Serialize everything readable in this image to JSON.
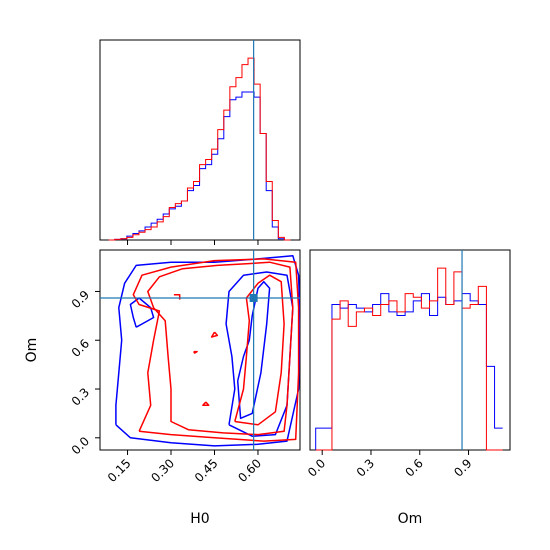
{
  "chart_data": {
    "type": "corner",
    "parameters": [
      "H0",
      "Om"
    ],
    "truths": {
      "H0": 0.585,
      "Om": 0.86
    },
    "truth_color": "#1f77b4",
    "ranges": {
      "H0": [
        0.055,
        0.745
      ],
      "Om": [
        -0.075,
        1.155
      ]
    },
    "ticks": {
      "H0": [
        0.15,
        0.3,
        0.45,
        0.6
      ],
      "H0_labels": [
        "0.15",
        "0.30",
        "0.45",
        "0.60"
      ],
      "Om": [
        0.0,
        0.3,
        0.6,
        0.9
      ],
      "Om_labels": [
        "0.0",
        "0.3",
        "0.6",
        "0.9"
      ]
    },
    "xlabel_bottom_left": "H0",
    "xlabel_bottom_right": "Om",
    "ylabel_left": "Om",
    "series": [
      {
        "color": "#ff0000"
      },
      {
        "color": "#0000ff"
      }
    ],
    "hist_H0": {
      "bin_edges": [
        0.085,
        0.1059,
        0.1268,
        0.1477,
        0.1686,
        0.1895,
        0.2104,
        0.2313,
        0.2522,
        0.2731,
        0.294,
        0.3149,
        0.3358,
        0.3567,
        0.3776,
        0.3985,
        0.4194,
        0.4403,
        0.4612,
        0.4821,
        0.503,
        0.5239,
        0.5448,
        0.5657,
        0.5866,
        0.6075,
        0.6284,
        0.6493,
        0.6702,
        0.6911,
        0.712
      ],
      "red": [
        0,
        0.005,
        0.01,
        0.02,
        0.04,
        0.06,
        0.08,
        0.1,
        0.14,
        0.18,
        0.25,
        0.28,
        0.3,
        0.4,
        0.45,
        0.58,
        0.62,
        0.7,
        0.85,
        1.0,
        1.18,
        1.25,
        1.35,
        1.4,
        1.2,
        0.82,
        0.45,
        0.15,
        0.02,
        0.0
      ],
      "blue": [
        0,
        0.005,
        0.01,
        0.03,
        0.05,
        0.07,
        0.1,
        0.13,
        0.16,
        0.2,
        0.24,
        0.26,
        0.3,
        0.38,
        0.42,
        0.55,
        0.58,
        0.66,
        0.78,
        0.95,
        1.08,
        1.1,
        1.14,
        1.14,
        1.1,
        0.82,
        0.38,
        0.1,
        0.01,
        0.0
      ]
    },
    "hist_Om": {
      "bin_edges": [
        -0.04,
        0.01,
        0.06,
        0.11,
        0.16,
        0.21,
        0.26,
        0.31,
        0.36,
        0.41,
        0.46,
        0.51,
        0.56,
        0.61,
        0.66,
        0.71,
        0.76,
        0.81,
        0.86,
        0.91,
        0.96,
        1.01,
        1.06,
        1.11
      ],
      "red": [
        0,
        0,
        0.72,
        0.82,
        0.68,
        0.76,
        0.78,
        0.74,
        0.8,
        0.82,
        0.76,
        0.86,
        0.84,
        0.78,
        0.82,
        1.0,
        0.8,
        0.98,
        0.78,
        0.8,
        0.9,
        0,
        0,
        0
      ],
      "blue": [
        0.12,
        0.12,
        0.8,
        0.78,
        0.8,
        0.78,
        0.76,
        0.8,
        0.86,
        0.76,
        0.74,
        0.76,
        0.82,
        0.86,
        0.74,
        0.84,
        0.8,
        0.82,
        0.86,
        0.82,
        0.8,
        0.46,
        0.12,
        0.12
      ]
    },
    "contours": {
      "red": [
        [
          [
            0.19,
            0.04
          ],
          [
            0.3,
            0.02
          ],
          [
            0.45,
            0.0
          ],
          [
            0.62,
            -0.02
          ],
          [
            0.73,
            -0.01
          ],
          [
            0.74,
            0.4
          ],
          [
            0.74,
            0.8
          ],
          [
            0.73,
            1.08
          ],
          [
            0.62,
            1.1
          ],
          [
            0.45,
            1.09
          ],
          [
            0.3,
            1.05
          ],
          [
            0.2,
            1.0
          ],
          [
            0.17,
            0.88
          ],
          [
            0.19,
            0.82
          ],
          [
            0.26,
            0.78
          ],
          [
            0.24,
            0.6
          ],
          [
            0.22,
            0.4
          ],
          [
            0.23,
            0.2
          ],
          [
            0.19,
            0.04
          ]
        ],
        [
          [
            0.3,
            0.3
          ],
          [
            0.29,
            0.5
          ],
          [
            0.28,
            0.72
          ],
          [
            0.24,
            0.8
          ],
          [
            0.22,
            0.9
          ],
          [
            0.26,
            0.99
          ],
          [
            0.34,
            1.04
          ],
          [
            0.46,
            1.06
          ],
          [
            0.56,
            1.07
          ],
          [
            0.64,
            1.08
          ],
          [
            0.71,
            1.05
          ],
          [
            0.72,
            0.8
          ],
          [
            0.71,
            0.5
          ],
          [
            0.7,
            0.2
          ],
          [
            0.69,
            0.04
          ],
          [
            0.6,
            0.02
          ],
          [
            0.48,
            0.03
          ],
          [
            0.36,
            0.05
          ],
          [
            0.3,
            0.1
          ],
          [
            0.3,
            0.3
          ]
        ],
        [
          [
            0.52,
            0.1
          ],
          [
            0.55,
            0.3
          ],
          [
            0.56,
            0.5
          ],
          [
            0.57,
            0.72
          ],
          [
            0.56,
            0.86
          ],
          [
            0.6,
            0.95
          ],
          [
            0.64,
            1.0
          ],
          [
            0.68,
            0.96
          ],
          [
            0.69,
            0.7
          ],
          [
            0.68,
            0.4
          ],
          [
            0.66,
            0.16
          ],
          [
            0.6,
            0.08
          ],
          [
            0.52,
            0.1
          ]
        ],
        [
          [
            0.45,
            0.65
          ],
          [
            0.46,
            0.63
          ],
          [
            0.44,
            0.62
          ],
          [
            0.45,
            0.65
          ]
        ],
        [
          [
            0.42,
            0.22
          ],
          [
            0.43,
            0.2
          ],
          [
            0.41,
            0.2
          ],
          [
            0.42,
            0.22
          ]
        ],
        [
          [
            0.38,
            0.52
          ],
          [
            0.39,
            0.53
          ],
          [
            0.38,
            0.53
          ],
          [
            0.38,
            0.52
          ]
        ],
        [
          [
            0.31,
            0.88
          ],
          [
            0.33,
            0.88
          ],
          [
            0.33,
            0.85
          ]
        ]
      ],
      "blue": [
        [
          [
            0.11,
            0.08
          ],
          [
            0.16,
            0.0
          ],
          [
            0.3,
            -0.03
          ],
          [
            0.45,
            -0.05
          ],
          [
            0.6,
            -0.04
          ],
          [
            0.7,
            -0.02
          ],
          [
            0.74,
            0.3
          ],
          [
            0.745,
            0.7
          ],
          [
            0.74,
            1.0
          ],
          [
            0.72,
            1.12
          ],
          [
            0.6,
            1.1
          ],
          [
            0.45,
            1.08
          ],
          [
            0.3,
            1.08
          ],
          [
            0.18,
            1.06
          ],
          [
            0.14,
            0.95
          ],
          [
            0.12,
            0.8
          ],
          [
            0.13,
            0.6
          ],
          [
            0.12,
            0.4
          ],
          [
            0.11,
            0.2
          ],
          [
            0.11,
            0.08
          ]
        ],
        [
          [
            0.18,
            0.68
          ],
          [
            0.2,
            0.7
          ],
          [
            0.24,
            0.74
          ],
          [
            0.23,
            0.8
          ],
          [
            0.19,
            0.86
          ],
          [
            0.16,
            0.82
          ],
          [
            0.17,
            0.74
          ],
          [
            0.18,
            0.68
          ]
        ],
        [
          [
            0.5,
            0.08
          ],
          [
            0.52,
            0.3
          ],
          [
            0.51,
            0.5
          ],
          [
            0.49,
            0.7
          ],
          [
            0.5,
            0.9
          ],
          [
            0.55,
            1.0
          ],
          [
            0.63,
            1.02
          ],
          [
            0.7,
            1.0
          ],
          [
            0.72,
            0.8
          ],
          [
            0.71,
            0.5
          ],
          [
            0.7,
            0.2
          ],
          [
            0.66,
            0.02
          ],
          [
            0.58,
            0.01
          ],
          [
            0.5,
            0.08
          ]
        ],
        [
          [
            0.53,
            0.35
          ],
          [
            0.55,
            0.5
          ],
          [
            0.57,
            0.6
          ],
          [
            0.58,
            0.75
          ],
          [
            0.6,
            0.92
          ],
          [
            0.62,
            0.96
          ],
          [
            0.64,
            0.92
          ],
          [
            0.63,
            0.7
          ],
          [
            0.61,
            0.4
          ],
          [
            0.58,
            0.15
          ],
          [
            0.54,
            0.12
          ],
          [
            0.53,
            0.35
          ]
        ]
      ]
    }
  }
}
